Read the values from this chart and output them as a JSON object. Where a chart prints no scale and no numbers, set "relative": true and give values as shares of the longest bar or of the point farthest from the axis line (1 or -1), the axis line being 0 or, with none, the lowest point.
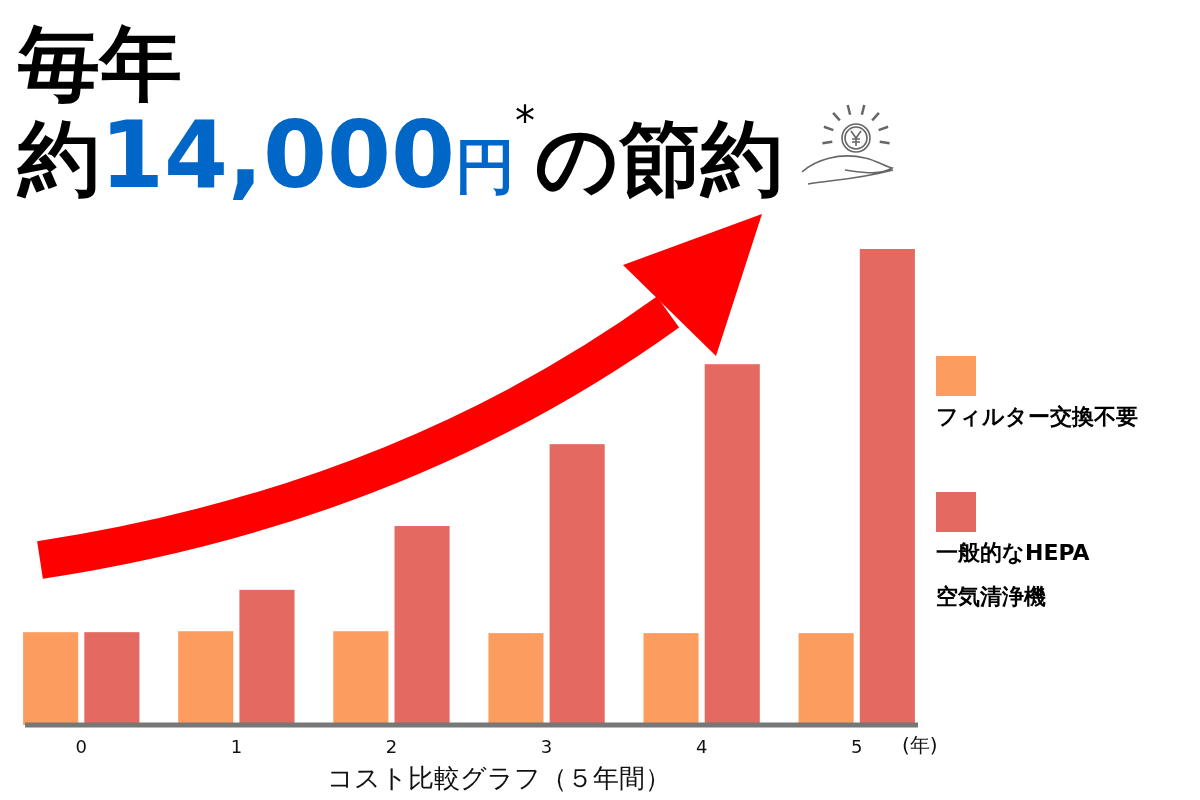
{
  "chart_data": {
    "type": "bar",
    "title": "毎年",
    "subtitle": "約14,000円$^{*}$の節約",
    "xlabel": "コスト比較グラフ（５年間）",
    "annotations": [
      "(年)"
    ],
    "categories": [
      "0",
      "1",
      "2",
      "3",
      "4",
      "5"
    ],
    "relative": true,
    "legend": "right",
    "series": [
      {
        "name": "フィルター交換不要",
        "color": "#fd9c5f",
        "values": [
          0.195,
          0.197,
          0.197,
          0.193,
          0.193,
          0.193
        ]
      },
      {
        "name": "一般的なHEPA 空気清浄機",
        "color": "#e36961",
        "values": [
          0.195,
          0.284,
          0.418,
          0.59,
          0.758,
          1
        ]
      }
    ]
  }
}
